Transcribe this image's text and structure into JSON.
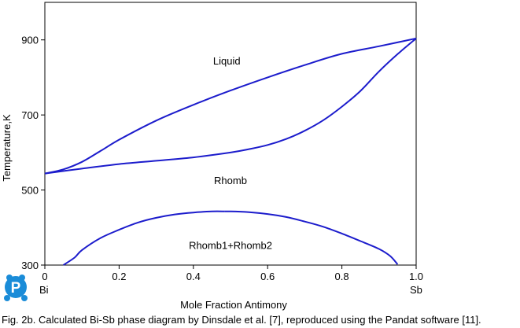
{
  "chart_data": {
    "type": "line",
    "title": "",
    "xlabel": "Mole Fraction Antimony",
    "ylabel": "Temperature,K",
    "xlim": [
      0,
      1
    ],
    "ylim": [
      300,
      1000
    ],
    "xticks": [
      0,
      0.2,
      0.4,
      0.6,
      0.8,
      1.0
    ],
    "xtick_labels": [
      "0",
      "0.2",
      "0.4",
      "0.6",
      "0.8",
      "1.0"
    ],
    "yticks": [
      300,
      500,
      700,
      900
    ],
    "ytick_labels": [
      "300",
      "500",
      "700",
      "900"
    ],
    "end_labels": {
      "left": "Bi",
      "right": "Sb"
    },
    "grid": false,
    "line_color": "#1c1ccc",
    "series": [
      {
        "points": [
          [
            0,
            544
          ],
          [
            0.05,
            555
          ],
          [
            0.1,
            575
          ],
          [
            0.15,
            604
          ],
          [
            0.2,
            634
          ],
          [
            0.3,
            685
          ],
          [
            0.4,
            727
          ],
          [
            0.5,
            765
          ],
          [
            0.6,
            800
          ],
          [
            0.7,
            833
          ],
          [
            0.8,
            863
          ],
          [
            0.9,
            883
          ],
          [
            1.0,
            904
          ]
        ]
      },
      {
        "points": [
          [
            0,
            544
          ],
          [
            0.1,
            557
          ],
          [
            0.2,
            569
          ],
          [
            0.3,
            578
          ],
          [
            0.4,
            587
          ],
          [
            0.5,
            600
          ],
          [
            0.55,
            609
          ],
          [
            0.6,
            620
          ],
          [
            0.65,
            636
          ],
          [
            0.7,
            658
          ],
          [
            0.75,
            686
          ],
          [
            0.8,
            722
          ],
          [
            0.85,
            764
          ],
          [
            0.9,
            816
          ],
          [
            0.95,
            862
          ],
          [
            1.0,
            904
          ]
        ]
      },
      {
        "points": [
          [
            0.05,
            300
          ],
          [
            0.08,
            320
          ],
          [
            0.1,
            340
          ],
          [
            0.15,
            372
          ],
          [
            0.2,
            394
          ],
          [
            0.25,
            413
          ],
          [
            0.3,
            426
          ],
          [
            0.35,
            435
          ],
          [
            0.4,
            440
          ],
          [
            0.45,
            443
          ],
          [
            0.485,
            443
          ]
        ]
      },
      {
        "points": [
          [
            0.485,
            443
          ],
          [
            0.5,
            443
          ],
          [
            0.55,
            441
          ],
          [
            0.6,
            436
          ],
          [
            0.65,
            428
          ],
          [
            0.7,
            416
          ],
          [
            0.75,
            402
          ],
          [
            0.8,
            384
          ],
          [
            0.85,
            364
          ],
          [
            0.9,
            343
          ],
          [
            0.93,
            324
          ],
          [
            0.95,
            302
          ]
        ]
      }
    ],
    "annotations": [
      {
        "text": "Liquid",
        "x": 0.49,
        "y": 845
      },
      {
        "text": "Rhomb",
        "x": 0.5,
        "y": 526
      },
      {
        "text": "Rhomb1+Rhomb2",
        "x": 0.5,
        "y": 353
      }
    ]
  },
  "caption": "Fig. 2b. Calculated Bi-Sb phase diagram by Dinsdale et al. [7], reproduced using the Pandat software [11]."
}
